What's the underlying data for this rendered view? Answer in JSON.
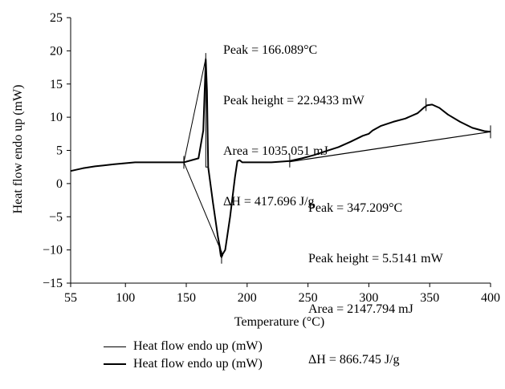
{
  "chart_data": {
    "type": "line",
    "xlabel": "Temperature (°C)",
    "ylabel": "Heat flow endo up (mW)",
    "xlim": [
      55,
      400
    ],
    "ylim": [
      -15,
      25
    ],
    "xticks": [
      55,
      100,
      150,
      200,
      250,
      300,
      350,
      400
    ],
    "yticks": [
      -15,
      -10,
      -5,
      0,
      5,
      10,
      15,
      20,
      25
    ],
    "grid": false,
    "legend_position": "bottom",
    "series": [
      {
        "name": "Heat flow endo up (mW)",
        "style": "thin",
        "color": "#000000",
        "x": [
          148,
          166,
          166,
          168,
          178,
          179,
          180,
          148
        ],
        "y": [
          3.2,
          18.9,
          2.5,
          2.5,
          -10.9,
          -11.2,
          -10.8,
          3.2
        ]
      },
      {
        "name": "Heat flow endo up (mW)",
        "style": "thick",
        "color": "#000000",
        "x": [
          55,
          65,
          75,
          90,
          108,
          125,
          148,
          160,
          164,
          166,
          167,
          168,
          172,
          176,
          179,
          182,
          186,
          190,
          192,
          194,
          196,
          200,
          210,
          220,
          235,
          245,
          255,
          265,
          275,
          285,
          295,
          300,
          303,
          306,
          310,
          320,
          330,
          340,
          345,
          348,
          352,
          358,
          365,
          375,
          385,
          395,
          400
        ],
        "y": [
          1.9,
          2.3,
          2.6,
          2.9,
          3.2,
          3.2,
          3.2,
          3.8,
          8.0,
          18.7,
          14.0,
          2.5,
          -3.0,
          -8.0,
          -10.9,
          -10.0,
          -5.0,
          1.0,
          3.4,
          3.5,
          3.2,
          3.2,
          3.2,
          3.2,
          3.4,
          3.8,
          4.3,
          4.9,
          5.5,
          6.3,
          7.2,
          7.5,
          8.0,
          8.3,
          8.7,
          9.3,
          9.8,
          10.6,
          11.4,
          11.8,
          11.9,
          11.4,
          10.4,
          9.3,
          8.4,
          7.9,
          7.8
        ]
      },
      {
        "name": "",
        "style": "baseline",
        "color": "#000000",
        "x": [
          235,
          400
        ],
        "y": [
          3.3,
          7.8
        ]
      }
    ],
    "markers": [
      {
        "x": 148,
        "y": 3.2
      },
      {
        "x": 166,
        "y": 18.7
      },
      {
        "x": 179,
        "y": -11.1
      },
      {
        "x": 235,
        "y": 3.4
      },
      {
        "x": 347,
        "y": 11.9
      },
      {
        "x": 400,
        "y": 7.8
      }
    ],
    "annotations": [
      {
        "id": "ann-1",
        "lines": [
          "Peak = 166.089°C",
          "Peak height = 22.9433 mW",
          "Area = 1035.051 mJ",
          "ΔH = 417.696 J/g"
        ]
      },
      {
        "id": "ann-2",
        "lines": [
          "Peak = 347.209°C",
          "Peak height = 5.5141 mW",
          "Area = 2147.794 mJ",
          "ΔH = 866.745 J/g"
        ]
      }
    ]
  },
  "legend": {
    "items": [
      {
        "label": "Heat flow endo up (mW)"
      },
      {
        "label": "Heat flow endo up (mW)"
      }
    ]
  }
}
